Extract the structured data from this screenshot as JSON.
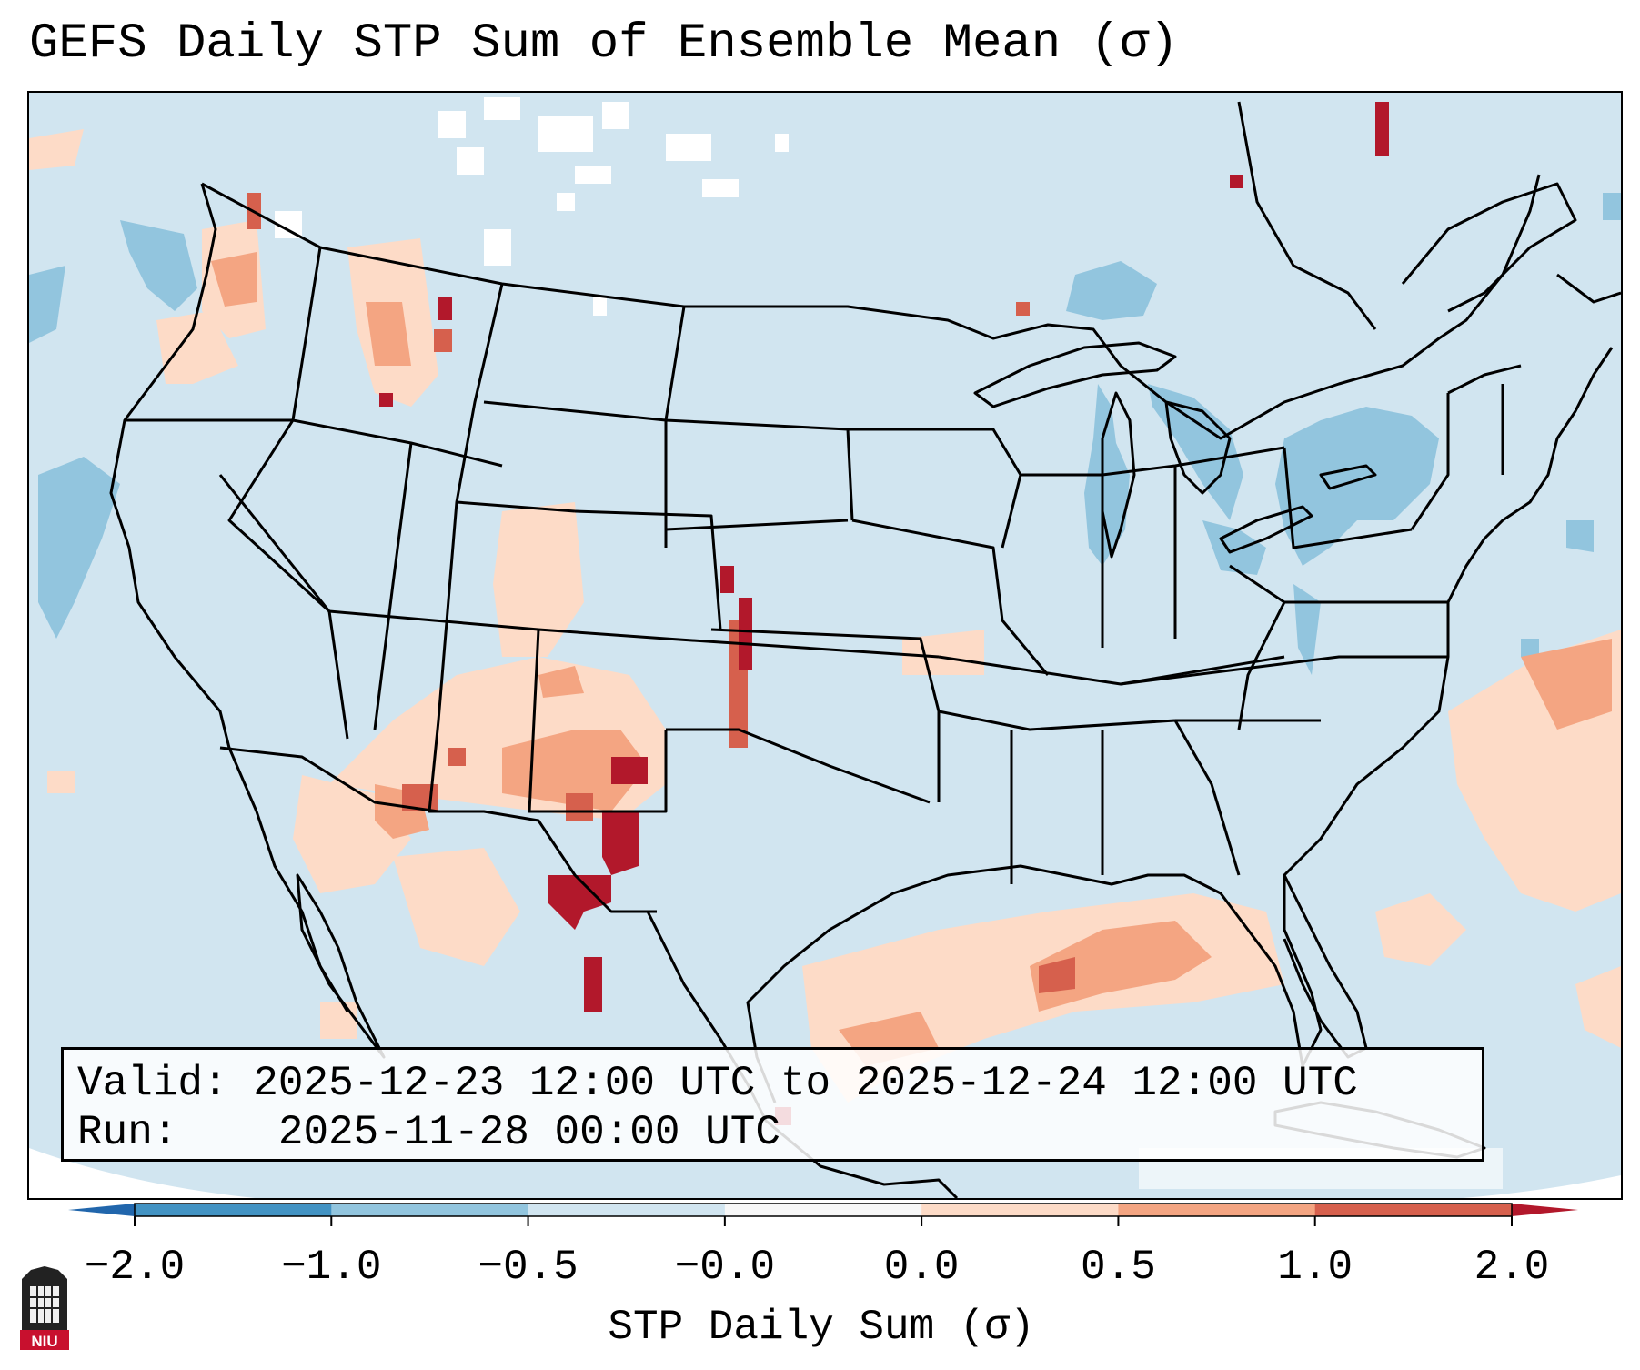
{
  "title": "GEFS Daily STP Sum of Ensemble Mean (σ)",
  "map": {
    "region": "Contiguous United States, northern Mexico, Gulf of Mexico",
    "features": [
      "state-borders",
      "country-borders",
      "coastlines",
      "great-lakes"
    ],
    "colors": {
      "background_field": "#d1e5f0",
      "outside_domain": "#ffffff",
      "neutral_white": "#f7f7f7",
      "light_blue": "#92c5de",
      "light_red": "#fddbc7",
      "mid_red": "#f4a582",
      "red": "#d6604d",
      "dark_red": "#b2182b"
    },
    "highlights": [
      {
        "area": "Southwest / New Mexico / west Texas",
        "level": "0.5 to 2.0"
      },
      {
        "area": "Kansas-Oklahoma line",
        "level": "1.0 to 2.0"
      },
      {
        "area": "Gulf of Mexico",
        "level": "0.0 to 1.0"
      },
      {
        "area": "Western Atlantic",
        "level": "0.0 to 0.5"
      },
      {
        "area": "Great Lakes / Northeast",
        "level": "-1.0 to -0.5"
      },
      {
        "area": "Pacific Northwest coast",
        "level": "-1.0 to -0.5"
      }
    ]
  },
  "info": {
    "valid_label": "Valid:",
    "valid_text": "2025-12-23 12:00 UTC to 2025-12-24 12:00 UTC",
    "run_label": "Run:",
    "run_text": "2025-11-28 00:00 UTC"
  },
  "colorbar": {
    "label": "STP Daily Sum (σ)",
    "ticks": [
      "−2.0",
      "−1.0",
      "−0.5",
      "−0.0",
      "0.0",
      "0.5",
      "1.0",
      "2.0"
    ],
    "bins": [
      {
        "from": "-2.0",
        "to": "-1.0",
        "color": "#4393c3"
      },
      {
        "from": "-1.0",
        "to": "-0.5",
        "color": "#92c5de"
      },
      {
        "from": "-0.5",
        "to": "-0.0",
        "color": "#d1e5f0"
      },
      {
        "from": "-0.0",
        "to": "0.0",
        "color": "#f7f7f7"
      },
      {
        "from": "0.0",
        "to": "0.5",
        "color": "#fddbc7"
      },
      {
        "from": "0.5",
        "to": "1.0",
        "color": "#f4a582"
      },
      {
        "from": "1.0",
        "to": "2.0",
        "color": "#d6604d"
      }
    ],
    "under_color": "#2166ac",
    "over_color": "#b2182b"
  },
  "logo": {
    "text": "NIU"
  }
}
